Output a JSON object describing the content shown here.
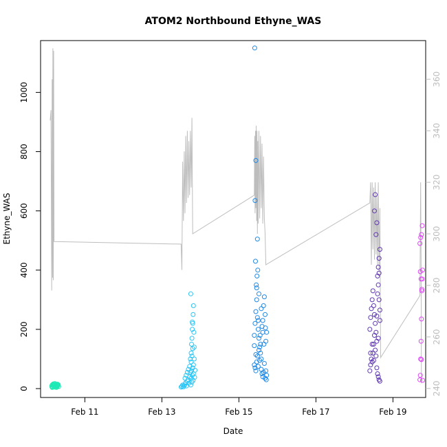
{
  "chart_data": {
    "type": "scatter",
    "title": "ATOM2 Northbound Ethyne_WAS",
    "xlabel": "Date",
    "ylabel": "Ethyne_WAS",
    "xlim": [
      9.85,
      19.85
    ],
    "ylim": [
      -30,
      1175
    ],
    "y2lim": [
      236.5,
      375
    ],
    "x_ticks": [
      {
        "value": 11,
        "label": "Feb 11"
      },
      {
        "value": 13,
        "label": "Feb 13"
      },
      {
        "value": 15,
        "label": "Feb 15"
      },
      {
        "value": 17,
        "label": "Feb 17"
      },
      {
        "value": 19,
        "label": "Feb 19"
      }
    ],
    "y_ticks": [
      0,
      200,
      400,
      600,
      800,
      1000
    ],
    "y2_ticks": [
      240,
      260,
      280,
      300,
      320,
      340,
      360
    ],
    "grid": false,
    "scatter_series": [
      {
        "color": "#1de9b6",
        "points": [
          [
            10.14,
            8
          ],
          [
            10.15,
            12
          ],
          [
            10.16,
            6
          ],
          [
            10.17,
            10
          ],
          [
            10.18,
            14
          ],
          [
            10.19,
            9
          ],
          [
            10.2,
            5
          ],
          [
            10.21,
            11
          ],
          [
            10.22,
            13
          ],
          [
            10.23,
            7
          ],
          [
            10.24,
            10
          ],
          [
            10.25,
            15
          ],
          [
            10.26,
            8
          ],
          [
            10.27,
            12
          ],
          [
            10.28,
            6
          ],
          [
            10.29,
            9
          ],
          [
            10.3,
            11
          ],
          [
            10.31,
            13
          ],
          [
            10.32,
            7
          ],
          [
            10.15,
            4
          ],
          [
            10.18,
            16
          ],
          [
            10.22,
            17
          ],
          [
            10.26,
            4
          ],
          [
            10.29,
            15
          ]
        ]
      },
      {
        "color": "#29c5f6",
        "points": [
          [
            13.5,
            5
          ],
          [
            13.52,
            8
          ],
          [
            13.54,
            12
          ],
          [
            13.56,
            6
          ],
          [
            13.58,
            10
          ],
          [
            13.6,
            15
          ],
          [
            13.62,
            20
          ],
          [
            13.64,
            9
          ],
          [
            13.66,
            25
          ],
          [
            13.68,
            30
          ],
          [
            13.7,
            18
          ],
          [
            13.72,
            40
          ],
          [
            13.74,
            55
          ],
          [
            13.75,
            12
          ],
          [
            13.76,
            35
          ],
          [
            13.77,
            60
          ],
          [
            13.78,
            22
          ],
          [
            13.79,
            45
          ],
          [
            13.8,
            70
          ],
          [
            13.81,
            28
          ],
          [
            13.82,
            50
          ],
          [
            13.6,
            35
          ],
          [
            13.63,
            45
          ],
          [
            13.66,
            55
          ],
          [
            13.69,
            65
          ],
          [
            13.72,
            75
          ],
          [
            13.74,
            100
          ],
          [
            13.76,
            120
          ],
          [
            13.77,
            150
          ],
          [
            13.78,
            170
          ],
          [
            13.79,
            200
          ],
          [
            13.8,
            220
          ],
          [
            13.81,
            250
          ],
          [
            13.82,
            280
          ],
          [
            13.75,
            320
          ],
          [
            13.76,
            90
          ],
          [
            13.78,
            110
          ],
          [
            13.8,
            135
          ],
          [
            13.82,
            80
          ],
          [
            13.84,
            100
          ],
          [
            13.84,
            140
          ],
          [
            13.83,
            190
          ],
          [
            13.79,
            225
          ],
          [
            13.85,
            38
          ],
          [
            13.86,
            62
          ]
        ]
      },
      {
        "color": "#1e88e5",
        "points": [
          [
            15.4,
            80
          ],
          [
            15.42,
            70
          ],
          [
            15.44,
            60
          ],
          [
            15.46,
            90
          ],
          [
            15.48,
            110
          ],
          [
            15.5,
            75
          ],
          [
            15.52,
            130
          ],
          [
            15.54,
            95
          ],
          [
            15.56,
            150
          ],
          [
            15.58,
            65
          ],
          [
            15.6,
            50
          ],
          [
            15.62,
            40
          ],
          [
            15.64,
            55
          ],
          [
            15.66,
            85
          ],
          [
            15.68,
            35
          ],
          [
            15.7,
            60
          ],
          [
            15.72,
            45
          ],
          [
            15.4,
            180
          ],
          [
            15.42,
            220
          ],
          [
            15.44,
            260
          ],
          [
            15.46,
            300
          ],
          [
            15.48,
            240
          ],
          [
            15.5,
            200
          ],
          [
            15.52,
            170
          ],
          [
            15.54,
            140
          ],
          [
            15.56,
            120
          ],
          [
            15.58,
            100
          ],
          [
            15.6,
            210
          ],
          [
            15.62,
            230
          ],
          [
            15.64,
            280
          ],
          [
            15.66,
            310
          ],
          [
            15.68,
            250
          ],
          [
            15.7,
            160
          ],
          [
            15.72,
            190
          ],
          [
            15.45,
            350
          ],
          [
            15.47,
            380
          ],
          [
            15.49,
            400
          ],
          [
            15.43,
            430
          ],
          [
            15.46,
            340
          ],
          [
            15.48,
            505
          ],
          [
            15.44,
            770
          ],
          [
            15.42,
            635
          ],
          [
            15.41,
            1150
          ],
          [
            15.52,
            320
          ],
          [
            15.58,
            270
          ],
          [
            15.62,
            190
          ],
          [
            15.65,
            150
          ],
          [
            15.69,
            205
          ],
          [
            15.71,
            30
          ],
          [
            15.4,
            145
          ],
          [
            15.44,
            115
          ],
          [
            15.5,
            230
          ],
          [
            15.55,
            180
          ]
        ]
      },
      {
        "color": "#5e35b1",
        "points": [
          [
            18.4,
            60
          ],
          [
            18.42,
            80
          ],
          [
            18.44,
            100
          ],
          [
            18.46,
            90
          ],
          [
            18.48,
            120
          ],
          [
            18.5,
            150
          ],
          [
            18.52,
            180
          ],
          [
            18.54,
            130
          ],
          [
            18.56,
            110
          ],
          [
            18.58,
            70
          ],
          [
            18.6,
            50
          ],
          [
            18.62,
            40
          ],
          [
            18.64,
            30
          ],
          [
            18.66,
            25
          ],
          [
            18.4,
            200
          ],
          [
            18.42,
            240
          ],
          [
            18.44,
            270
          ],
          [
            18.46,
            300
          ],
          [
            18.48,
            330
          ],
          [
            18.5,
            280
          ],
          [
            18.52,
            250
          ],
          [
            18.54,
            220
          ],
          [
            18.56,
            190
          ],
          [
            18.58,
            160
          ],
          [
            18.6,
            380
          ],
          [
            18.62,
            410
          ],
          [
            18.64,
            440
          ],
          [
            18.66,
            470
          ],
          [
            18.52,
            600
          ],
          [
            18.54,
            655
          ],
          [
            18.56,
            520
          ],
          [
            18.58,
            560
          ],
          [
            18.6,
            320
          ],
          [
            18.62,
            350
          ],
          [
            18.64,
            300
          ],
          [
            18.66,
            265
          ],
          [
            18.46,
            150
          ],
          [
            18.5,
            95
          ],
          [
            18.58,
            245
          ],
          [
            18.62,
            170
          ],
          [
            18.42,
            120
          ],
          [
            18.66,
            230
          ],
          [
            18.64,
            390
          ]
        ]
      },
      {
        "color": "#e040fb",
        "points": [
          [
            19.7,
            30
          ],
          [
            19.71,
            45
          ],
          [
            19.72,
            100
          ],
          [
            19.73,
            160
          ],
          [
            19.74,
            235
          ],
          [
            19.75,
            330
          ],
          [
            19.76,
            370
          ],
          [
            19.77,
            400
          ],
          [
            19.7,
            490
          ],
          [
            19.72,
            510
          ],
          [
            19.74,
            520
          ],
          [
            19.76,
            550
          ],
          [
            19.71,
            395
          ],
          [
            19.73,
            370
          ],
          [
            19.75,
            335
          ],
          [
            19.77,
            28
          ],
          [
            19.74,
            98
          ]
        ]
      }
    ],
    "line_series": {
      "color": "#bdbdbd",
      "axis": "right",
      "points": [
        [
          10.1,
          344
        ],
        [
          10.12,
          348
        ],
        [
          10.14,
          278
        ],
        [
          10.15,
          360
        ],
        [
          10.16,
          283
        ],
        [
          10.17,
          372
        ],
        [
          10.18,
          282
        ],
        [
          10.19,
          371
        ],
        [
          10.2,
          297
        ],
        [
          13.5,
          296
        ],
        [
          13.52,
          286
        ],
        [
          13.54,
          328
        ],
        [
          13.56,
          305
        ],
        [
          13.58,
          332
        ],
        [
          13.6,
          308
        ],
        [
          13.62,
          338
        ],
        [
          13.64,
          312
        ],
        [
          13.66,
          340
        ],
        [
          13.68,
          314
        ],
        [
          13.7,
          336
        ],
        [
          13.72,
          315
        ],
        [
          13.74,
          340
        ],
        [
          13.76,
          318
        ],
        [
          13.78,
          345
        ],
        [
          13.8,
          300
        ],
        [
          15.4,
          315
        ],
        [
          15.41,
          338
        ],
        [
          15.42,
          308
        ],
        [
          15.43,
          340
        ],
        [
          15.44,
          310
        ],
        [
          15.45,
          342
        ],
        [
          15.46,
          305
        ],
        [
          15.47,
          340
        ],
        [
          15.48,
          300
        ],
        [
          15.49,
          336
        ],
        [
          15.5,
          304
        ],
        [
          15.52,
          340
        ],
        [
          15.54,
          306
        ],
        [
          15.56,
          338
        ],
        [
          15.58,
          310
        ],
        [
          15.6,
          335
        ],
        [
          15.62,
          304
        ],
        [
          15.64,
          330
        ],
        [
          15.66,
          306
        ],
        [
          15.68,
          300
        ],
        [
          15.7,
          288
        ],
        [
          18.4,
          312
        ],
        [
          18.42,
          320
        ],
        [
          18.44,
          288
        ],
        [
          18.46,
          320
        ],
        [
          18.48,
          294
        ],
        [
          18.5,
          318
        ],
        [
          18.52,
          290
        ],
        [
          18.54,
          320
        ],
        [
          18.56,
          292
        ],
        [
          18.58,
          315
        ],
        [
          18.6,
          288
        ],
        [
          18.62,
          320
        ],
        [
          18.64,
          285
        ],
        [
          18.66,
          310
        ],
        [
          18.68,
          252
        ],
        [
          19.7,
          276
        ],
        [
          19.71,
          300
        ],
        [
          19.72,
          320
        ],
        [
          19.73,
          290
        ],
        [
          19.74,
          242
        ]
      ]
    }
  }
}
